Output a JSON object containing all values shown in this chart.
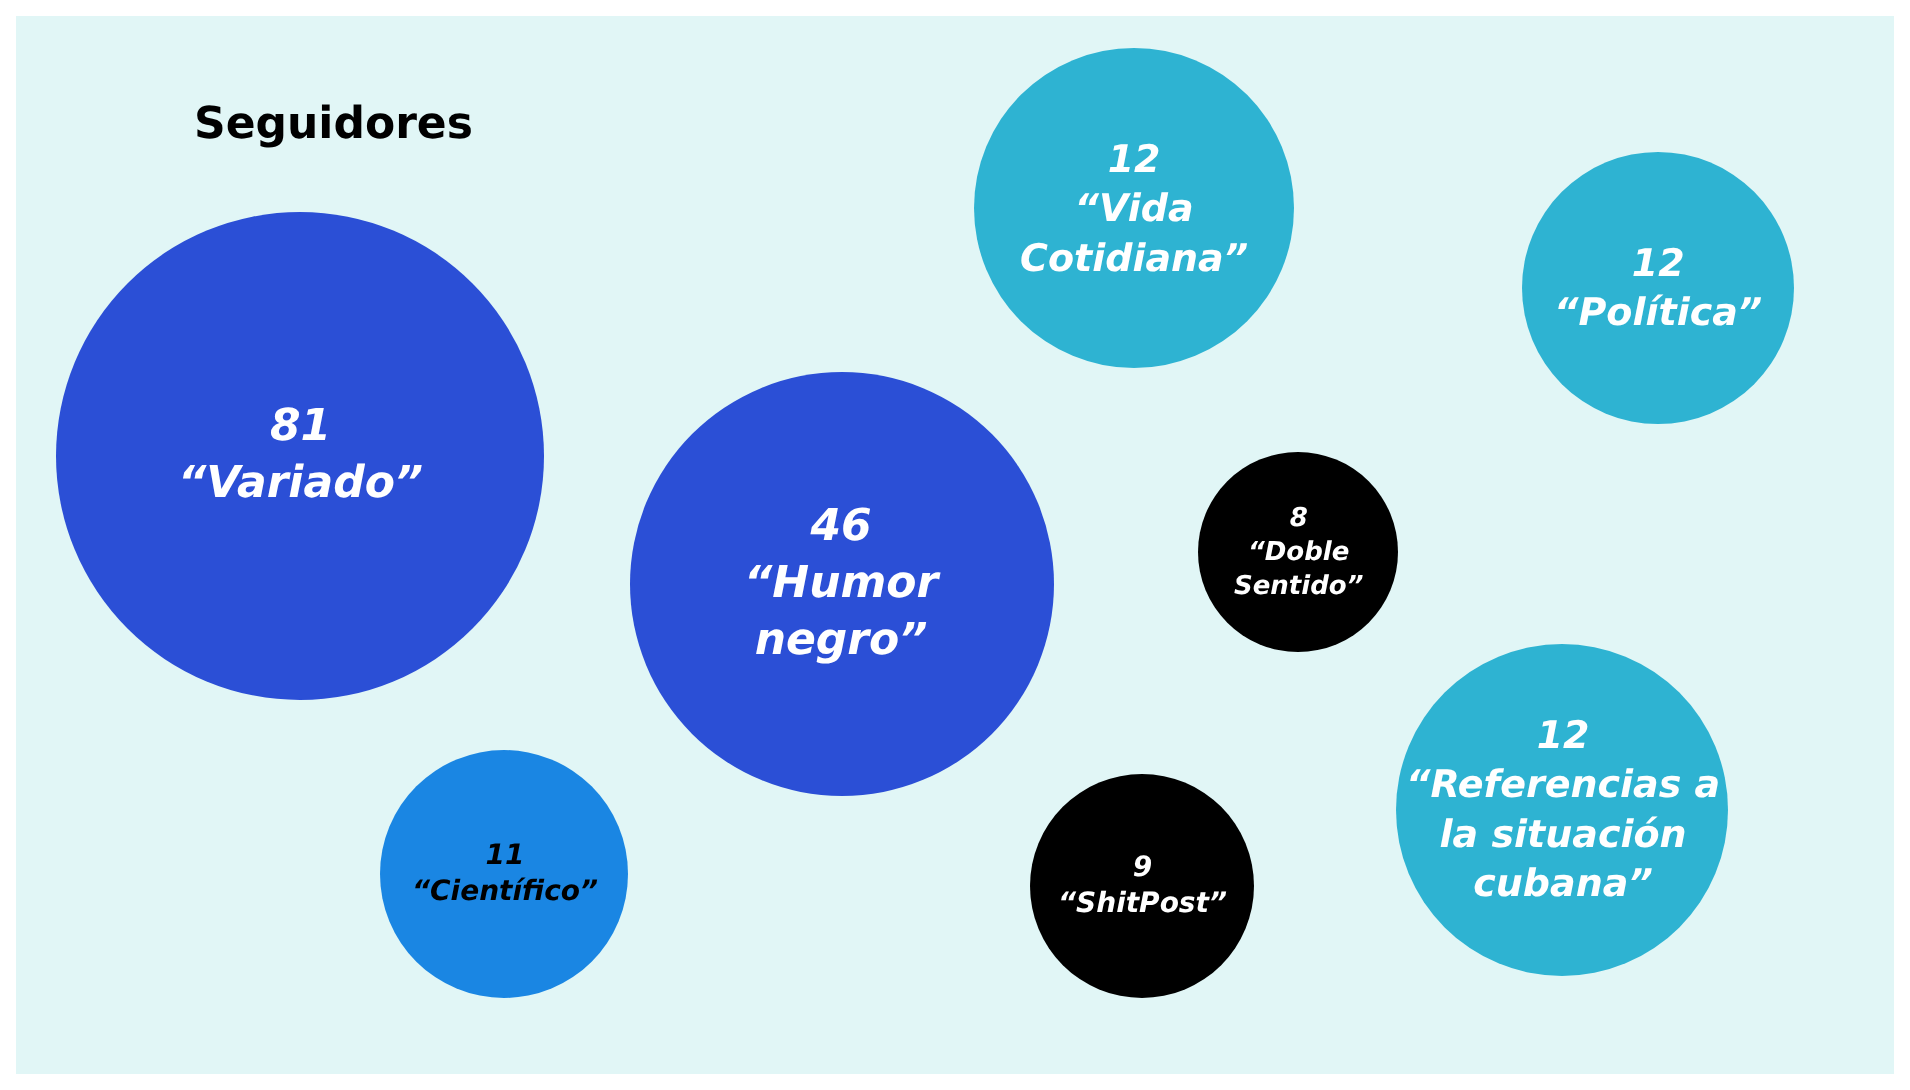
{
  "chart_data": {
    "type": "other",
    "title": "Seguidores",
    "categories": [
      "“Variado”",
      "“Humor negro”",
      "“Científico”",
      "“Vida Cotidiana”",
      "“Política”",
      "“Doble Sentido”",
      "“ShitPost”",
      "“Referencias a la situación cubana”"
    ],
    "values": [
      81,
      46,
      11,
      12,
      12,
      8,
      9,
      12
    ],
    "colors": [
      "#2b4fd6",
      "#2b4fd6",
      "#1a86e3",
      "#2eb3d2",
      "#2eb3d2",
      "#000000",
      "#000000",
      "#2eb3d2"
    ],
    "data_labels": true,
    "legend": false
  }
}
